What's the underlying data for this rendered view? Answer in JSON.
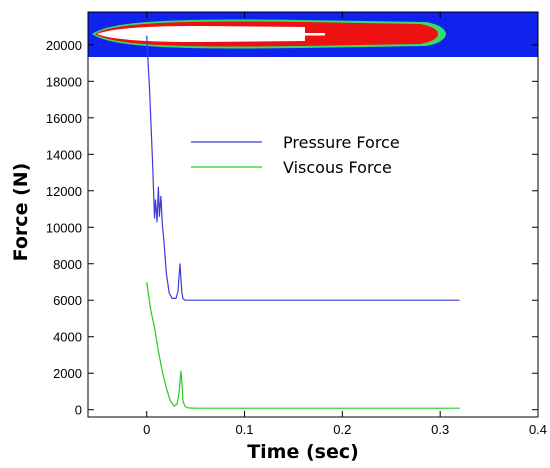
{
  "chart_data": {
    "type": "line",
    "title": "",
    "xlabel": "Time (sec)",
    "ylabel": "Force (N)",
    "xlim": [
      -0.06,
      0.4
    ],
    "ylim": [
      -400,
      21800
    ],
    "grid": false,
    "legend_position": "center",
    "x_ticks": [
      0,
      0.1,
      0.2,
      0.3,
      0.4
    ],
    "x_tick_labels": [
      "0",
      "0.1",
      "0.2",
      "0.3",
      "0.4"
    ],
    "y_ticks": [
      0,
      2000,
      4000,
      6000,
      8000,
      10000,
      12000,
      14000,
      16000,
      18000,
      20000
    ],
    "y_tick_labels": [
      "0",
      "2000",
      "4000",
      "6000",
      "8000",
      "10000",
      "12000",
      "14000",
      "16000",
      "18000",
      "20000"
    ],
    "series": [
      {
        "name": "Pressure Force",
        "color": "#3b3bd8",
        "x": [
          0.0,
          0.003,
          0.006,
          0.008,
          0.009,
          0.0105,
          0.012,
          0.013,
          0.0145,
          0.016,
          0.018,
          0.02,
          0.023,
          0.026,
          0.03,
          0.032,
          0.033,
          0.034,
          0.035,
          0.036,
          0.037,
          0.039,
          0.042,
          0.05,
          0.08,
          0.1,
          0.12,
          0.15,
          0.2,
          0.25,
          0.3,
          0.32
        ],
        "y": [
          20500,
          17500,
          13500,
          10500,
          11500,
          10300,
          12200,
          10600,
          11700,
          10200,
          9000,
          7500,
          6400,
          6100,
          6100,
          6500,
          7300,
          8000,
          7200,
          6400,
          6100,
          6000,
          6000,
          6000,
          6000,
          6000,
          6000,
          6000,
          6000,
          6000,
          6000,
          6000
        ]
      },
      {
        "name": "Viscous Force",
        "color": "#22cc22",
        "x": [
          0.0,
          0.004,
          0.008,
          0.012,
          0.016,
          0.02,
          0.024,
          0.028,
          0.031,
          0.033,
          0.035,
          0.036,
          0.037,
          0.039,
          0.042,
          0.05,
          0.1,
          0.2,
          0.3,
          0.32
        ],
        "y": [
          7000,
          5500,
          4500,
          3200,
          2100,
          1200,
          500,
          200,
          300,
          900,
          2100,
          1500,
          500,
          200,
          100,
          80,
          80,
          80,
          80,
          80
        ]
      }
    ]
  },
  "inset": {
    "description_icon": "vehicle-contour-image",
    "colors": {
      "background": "#1022ee",
      "outer_band": "#33dd66",
      "body": "#ee1111",
      "body_inner": "#ffffff"
    }
  }
}
